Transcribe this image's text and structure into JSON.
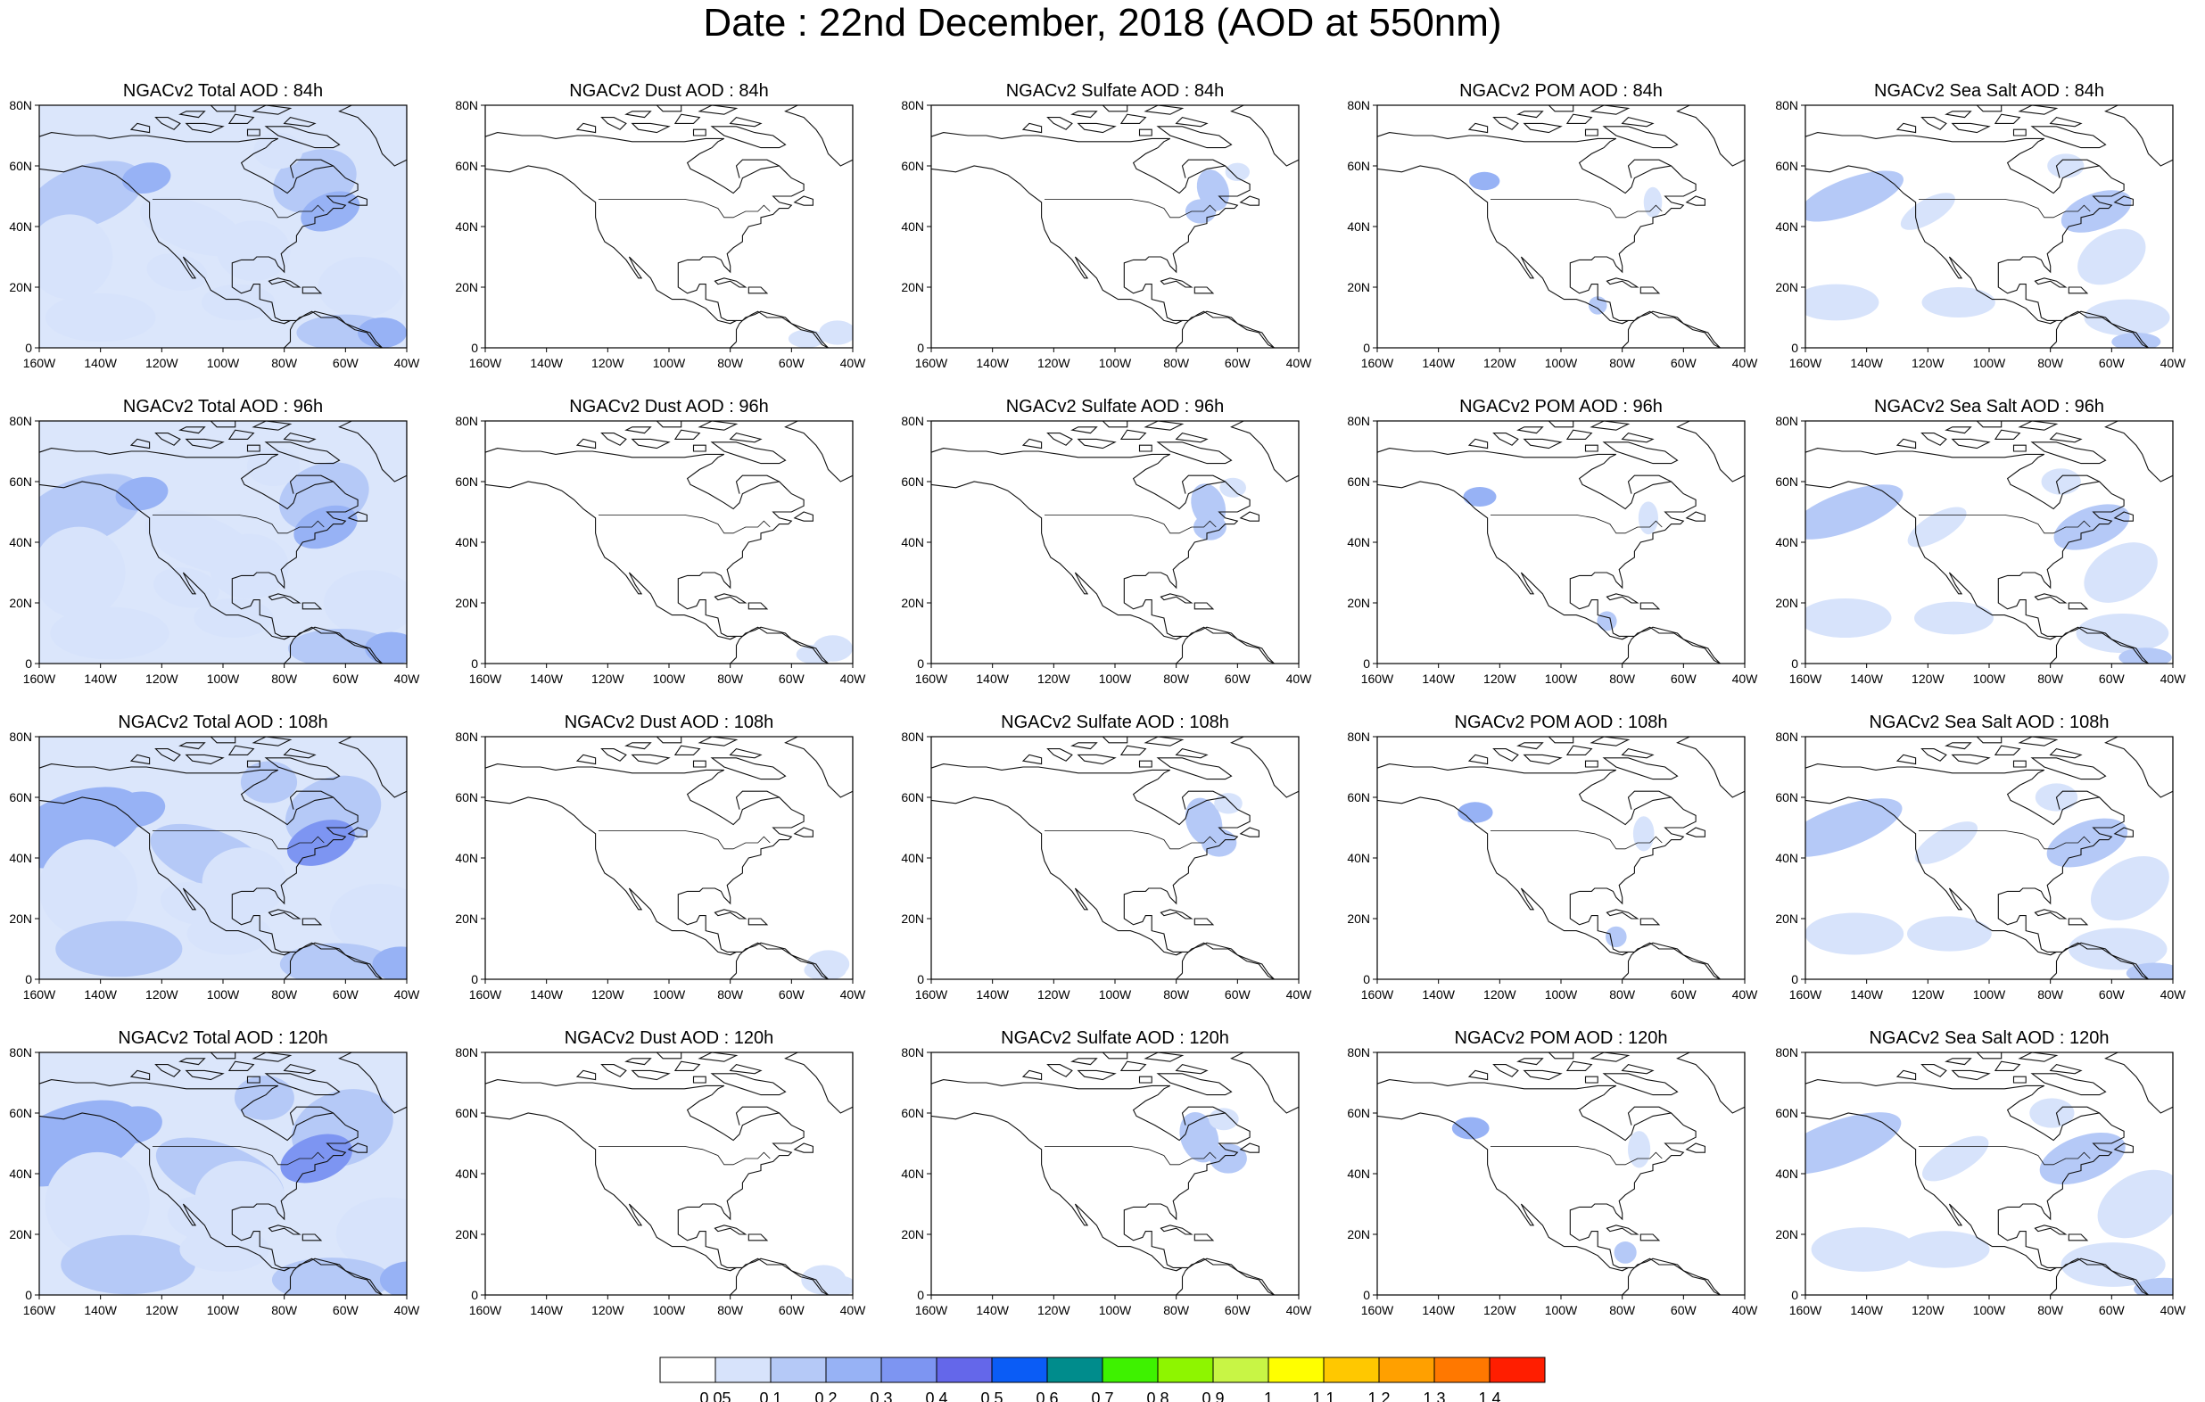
{
  "title": "Date : 22nd December, 2018 (AOD at 550nm)",
  "columns": [
    {
      "key": "total",
      "label": "Total"
    },
    {
      "key": "dust",
      "label": "Dust"
    },
    {
      "key": "sulfate",
      "label": "Sulfate"
    },
    {
      "key": "pom",
      "label": "POM"
    },
    {
      "key": "seasalt",
      "label": "Sea Salt"
    }
  ],
  "rows": [
    {
      "hour": "84h",
      "titles": [
        "NGACv2 Total AOD : 84h",
        "NGACv2 Dust AOD : 84h",
        "NGACv2 Sulfate AOD : 84h",
        "NGACv2 POM AOD : 84h",
        "NGACv2 Sea Salt AOD : 84h"
      ]
    },
    {
      "hour": "96h",
      "titles": [
        "NGACv2 Total AOD : 96h",
        "NGACv2 Dust AOD : 96h",
        "NGACv2 Sulfate AOD : 96h",
        "NGACv2 POM AOD : 96h",
        "NGACv2 Sea Salt AOD : 96h"
      ]
    },
    {
      "hour": "108h",
      "titles": [
        "NGACv2 Total AOD : 108h",
        "NGACv2 Dust AOD : 108h",
        "NGACv2 Sulfate AOD : 108h",
        "NGACv2 POM AOD : 108h",
        "NGACv2 Sea Salt AOD : 108h"
      ]
    },
    {
      "hour": "120h",
      "titles": [
        "NGACv2 Total AOD : 120h",
        "NGACv2 Dust AOD : 120h",
        "NGACv2 Sulfate AOD : 120h",
        "NGACv2 POM AOD : 120h",
        "NGACv2 Sea Salt  AOD : 120h"
      ]
    }
  ],
  "lat_ticks": [
    "80N",
    "60N",
    "40N",
    "20N",
    "0"
  ],
  "lon_ticks_a": [
    "160W",
    "140W",
    "120W",
    "100W",
    "80W",
    "60W",
    "40W"
  ],
  "lon_ticks_b": [
    "160W",
    "140W",
    "120W",
    "100W",
    "80W",
    "60W",
    "40W"
  ],
  "colorbar": {
    "labels": [
      "0.05",
      "0.1",
      "0.2",
      "0.3",
      "0.4",
      "0.5",
      "0.6",
      "0.7",
      "0.8",
      "0.9",
      "1",
      "1.1",
      "1.2",
      "1.3",
      "1.4"
    ],
    "colors": [
      "#ffffff",
      "#d7e3fb",
      "#b5c9f7",
      "#97b2f5",
      "#7d95f2",
      "#6467ea",
      "#0a5cf6",
      "#008c8c",
      "#3ef200",
      "#8ef500",
      "#c8f545",
      "#ffff00",
      "#ffc800",
      "#ffa000",
      "#ff7800",
      "#ff1e00"
    ]
  },
  "aerosol_shading": {
    "total": {
      "84h": "0.1-0.3",
      "96h": "0.1-0.3",
      "108h": "0.1-0.4",
      "120h": "0.1-0.4"
    },
    "dust": {
      "84h": "<0.1",
      "96h": "<0.1",
      "108h": "<0.1",
      "120h": "<0.1"
    },
    "sulfate": {
      "84h": "<0.2",
      "96h": "<0.2",
      "108h": "<0.2",
      "120h": "<0.2"
    },
    "pom": {
      "84h": "<0.2",
      "96h": "<0.2",
      "108h": "<0.2",
      "120h": "<0.2"
    },
    "seasalt": {
      "84h": "0.05-0.3",
      "96h": "0.05-0.3",
      "108h": "0.05-0.3",
      "120h": "0.05-0.3"
    }
  }
}
